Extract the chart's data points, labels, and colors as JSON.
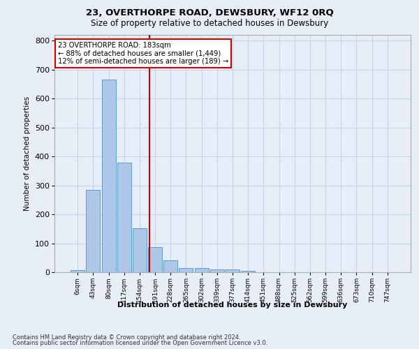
{
  "title": "23, OVERTHORPE ROAD, DEWSBURY, WF12 0RQ",
  "subtitle": "Size of property relative to detached houses in Dewsbury",
  "xlabel": "Distribution of detached houses by size in Dewsbury",
  "ylabel": "Number of detached properties",
  "footnote1": "Contains HM Land Registry data © Crown copyright and database right 2024.",
  "footnote2": "Contains public sector information licensed under the Open Government Licence v3.0.",
  "bar_labels": [
    "6sqm",
    "43sqm",
    "80sqm",
    "117sqm",
    "154sqm",
    "191sqm",
    "228sqm",
    "265sqm",
    "302sqm",
    "339sqm",
    "377sqm",
    "414sqm",
    "451sqm",
    "488sqm",
    "525sqm",
    "562sqm",
    "599sqm",
    "636sqm",
    "673sqm",
    "710sqm",
    "747sqm"
  ],
  "bar_values": [
    8,
    285,
    665,
    378,
    152,
    88,
    40,
    15,
    15,
    10,
    10,
    5,
    0,
    0,
    0,
    0,
    0,
    0,
    0,
    0,
    0
  ],
  "bar_color": "#aec6e8",
  "bar_edge_color": "#5b9bd5",
  "grid_color": "#c8d4e8",
  "background_color": "#e8eef8",
  "vline_x": 4.62,
  "vline_color": "#cc0000",
  "annotation_text": "23 OVERTHORPE ROAD: 183sqm\n← 88% of detached houses are smaller (1,449)\n12% of semi-detached houses are larger (189) →",
  "annotation_box_color": "#ffffff",
  "annotation_box_edge_color": "#cc0000",
  "ylim": [
    0,
    820
  ],
  "yticks": [
    0,
    100,
    200,
    300,
    400,
    500,
    600,
    700,
    800
  ]
}
